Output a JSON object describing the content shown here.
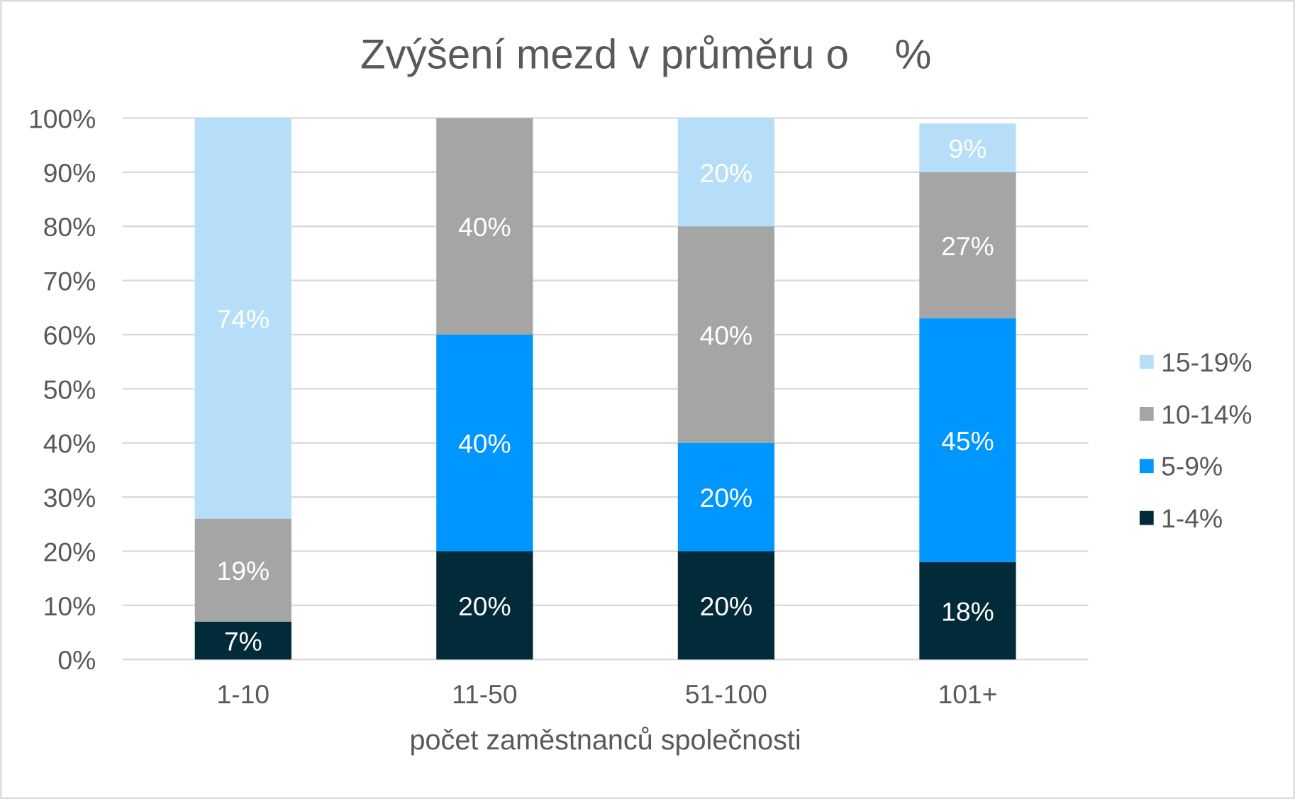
{
  "chart_data": {
    "type": "bar",
    "stacked": true,
    "title": "Zvýšení mezd v průměru o    %",
    "xlabel": "počet zaměstnanců společnosti",
    "ylabel": "",
    "ylim": [
      0,
      100
    ],
    "yticks": [
      "0%",
      "10%",
      "20%",
      "30%",
      "40%",
      "50%",
      "60%",
      "70%",
      "80%",
      "90%",
      "100%"
    ],
    "categories": [
      "1-10",
      "11-50",
      "51-100",
      "101+"
    ],
    "series": [
      {
        "name": "1-4%",
        "color": "#022B3A",
        "values": [
          7,
          20,
          20,
          18
        ]
      },
      {
        "name": "5-9%",
        "color": "#0096FF",
        "values": [
          0,
          40,
          20,
          45
        ]
      },
      {
        "name": "10-14%",
        "color": "#A5A5A5",
        "values": [
          19,
          40,
          40,
          27
        ]
      },
      {
        "name": "15-19%",
        "color": "#B7DEF8",
        "values": [
          74,
          0,
          20,
          9
        ]
      }
    ],
    "legend_position": "right",
    "grid": true
  }
}
